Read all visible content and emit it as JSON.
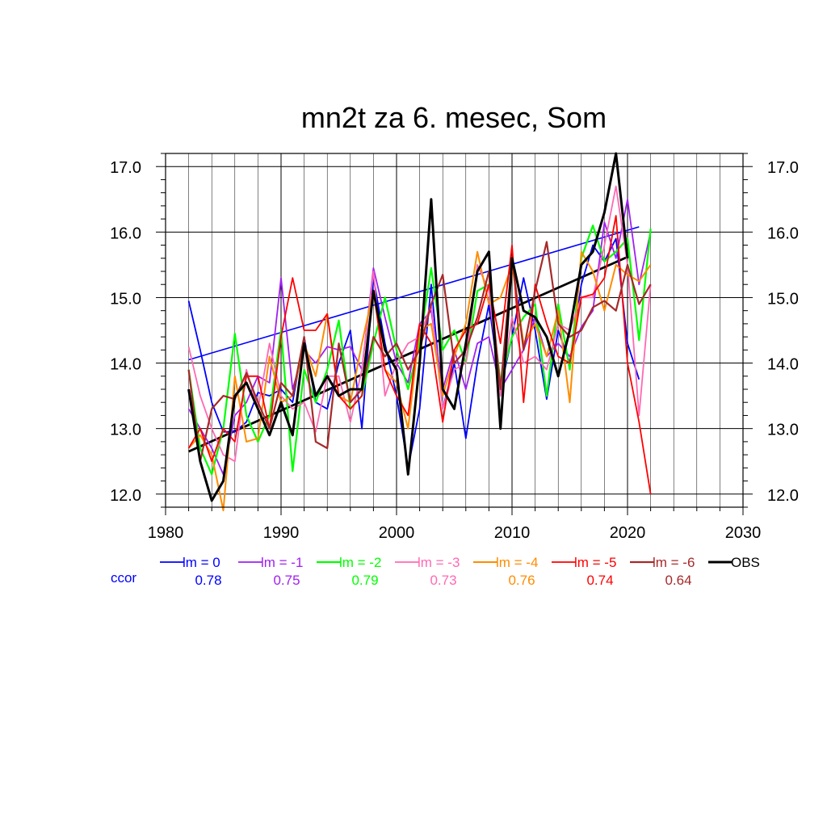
{
  "chart_data": {
    "type": "line",
    "title": "mn2t za 6. mesec, Som",
    "xlabel": "",
    "ylabel": "",
    "xlim": [
      1980,
      2030
    ],
    "ylim": [
      11.8,
      17.2
    ],
    "xticks": [
      1980,
      1990,
      2000,
      2010,
      2020,
      2030
    ],
    "yticks": [
      12.0,
      13.0,
      14.0,
      15.0,
      16.0,
      17.0
    ],
    "ytick_labels": [
      "12.0",
      "13.0",
      "14.0",
      "15.0",
      "16.0",
      "17.0"
    ],
    "grid": true,
    "legend_position": "bottom",
    "ccor_label": "ccor",
    "ccor_color": "#0000ff",
    "series": [
      {
        "name": "lm = 0",
        "color": "#0000ff",
        "width": 1.8,
        "ccor": "0.78",
        "x_start": 1982,
        "values": [
          14.95,
          14.2,
          13.4,
          12.95,
          12.95,
          13.1,
          13.55,
          13.5,
          13.6,
          13.4,
          14.4,
          13.4,
          13.3,
          14.0,
          14.5,
          13.0,
          15.3,
          14.3,
          13.5,
          12.4,
          13.3,
          15.2,
          13.3,
          14.0,
          12.85,
          14.0,
          14.9,
          13.6,
          14.4,
          15.3,
          14.5,
          13.45,
          14.5,
          14.0,
          15.2,
          15.8,
          15.55,
          15.9,
          14.3,
          13.75
        ]
      },
      {
        "name": "lm = -1",
        "color": "#a020f0",
        "width": 1.8,
        "ccor": "0.75",
        "x_start": 1982,
        "values": [
          13.3,
          13.0,
          12.7,
          12.3,
          13.2,
          13.4,
          13.8,
          13.7,
          15.3,
          13.6,
          14.2,
          14.0,
          14.25,
          14.2,
          14.25,
          13.9,
          15.45,
          14.7,
          14.0,
          13.7,
          14.6,
          14.8,
          13.6,
          14.2,
          13.6,
          14.3,
          14.4,
          13.6,
          13.9,
          14.2,
          14.7,
          14.1,
          14.3,
          14.1,
          14.55,
          14.8,
          16.15,
          15.6,
          16.5,
          15.2,
          16.0
        ]
      },
      {
        "name": "lm = -2",
        "color": "#00ff00",
        "width": 2.2,
        "ccor": "0.79",
        "x_start": 1982,
        "values": [
          13.9,
          12.7,
          12.3,
          13.0,
          14.45,
          13.2,
          12.8,
          13.2,
          14.5,
          12.35,
          13.9,
          13.4,
          13.9,
          14.65,
          13.3,
          13.5,
          14.3,
          15.0,
          14.2,
          13.6,
          14.3,
          15.45,
          14.2,
          14.5,
          14.0,
          15.1,
          15.2,
          13.7,
          14.4,
          14.7,
          14.9,
          13.5,
          14.9,
          13.9,
          15.6,
          16.1,
          15.55,
          15.7,
          15.9,
          14.35,
          16.05
        ]
      },
      {
        "name": "lm = -3",
        "color": "#ff69b4",
        "width": 1.8,
        "ccor": "0.73",
        "x_start": 1982,
        "values": [
          14.25,
          13.5,
          13.0,
          12.6,
          12.5,
          13.9,
          13.3,
          14.3,
          13.5,
          13.3,
          13.4,
          12.95,
          13.8,
          13.8,
          13.1,
          13.9,
          15.4,
          13.5,
          14.0,
          14.3,
          14.4,
          14.9,
          13.3,
          13.9,
          14.0,
          15.5,
          15.1,
          13.5,
          14.7,
          14.0,
          14.1,
          13.9,
          14.6,
          14.5,
          15.0,
          15.0,
          15.8,
          16.7,
          15.5,
          13.2,
          15.2
        ]
      },
      {
        "name": "lm = -4",
        "color": "#ff8c00",
        "width": 2.0,
        "ccor": "0.76",
        "x_start": 1982,
        "values": [
          12.7,
          12.9,
          12.6,
          11.75,
          13.8,
          12.8,
          12.85,
          14.1,
          13.4,
          13.5,
          14.3,
          13.8,
          14.75,
          13.5,
          13.4,
          14.3,
          15.1,
          13.9,
          13.7,
          13.0,
          14.5,
          14.6,
          13.5,
          14.1,
          14.6,
          15.7,
          14.9,
          15.0,
          15.5,
          14.3,
          14.6,
          14.1,
          14.8,
          13.4,
          15.7,
          15.4,
          14.8,
          15.5,
          15.35,
          15.25,
          15.5
        ]
      },
      {
        "name": "lm = -5",
        "color": "#ff0000",
        "width": 1.8,
        "ccor": "0.74",
        "x_start": 1982,
        "values": [
          12.7,
          13.0,
          12.5,
          13.0,
          12.8,
          13.8,
          13.8,
          13.0,
          14.4,
          15.3,
          14.5,
          14.5,
          14.75,
          13.5,
          13.3,
          13.5,
          15.1,
          13.9,
          13.5,
          13.2,
          14.6,
          14.3,
          13.1,
          14.2,
          14.5,
          14.6,
          15.2,
          14.3,
          15.8,
          13.4,
          15.2,
          14.6,
          14.1,
          14.0,
          15.0,
          15.05,
          15.3,
          16.25,
          14.0,
          13.1,
          12.0
        ]
      },
      {
        "name": "lm = -6",
        "color": "#a52a2a",
        "width": 2.2,
        "ccor": "0.64",
        "x_start": 1982,
        "values": [
          13.9,
          12.5,
          13.3,
          13.5,
          13.45,
          13.85,
          13.4,
          13.0,
          13.7,
          13.5,
          14.4,
          12.8,
          12.7,
          14.3,
          13.4,
          13.6,
          14.4,
          14.1,
          14.3,
          13.9,
          14.2,
          14.9,
          15.35,
          14.0,
          14.2,
          14.7,
          15.4,
          13.6,
          15.6,
          14.2,
          15.1,
          15.85,
          14.6,
          14.4,
          14.5,
          14.85,
          14.95,
          14.8,
          15.5,
          14.9,
          15.2
        ]
      },
      {
        "name": "OBS",
        "color": "#000000",
        "width": 3.0,
        "ccor": "",
        "x_start": 1982,
        "values": [
          13.6,
          12.5,
          11.9,
          12.2,
          13.5,
          13.7,
          13.3,
          12.9,
          13.4,
          12.9,
          14.3,
          13.5,
          13.8,
          13.5,
          13.6,
          13.6,
          15.1,
          14.2,
          13.9,
          12.3,
          14.0,
          16.5,
          13.6,
          13.3,
          14.3,
          15.4,
          15.7,
          13.0,
          15.6,
          14.8,
          14.7,
          14.4,
          13.8,
          14.5,
          15.5,
          15.7,
          16.3,
          17.2,
          15.6
        ]
      }
    ],
    "trend_lines": [
      {
        "color": "#0000ff",
        "width": 1.6,
        "x": [
          1982,
          2021
        ],
        "y": [
          14.05,
          16.08
        ]
      },
      {
        "color": "#000000",
        "width": 2.8,
        "x": [
          1982,
          2020
        ],
        "y": [
          12.65,
          15.62
        ]
      }
    ]
  }
}
